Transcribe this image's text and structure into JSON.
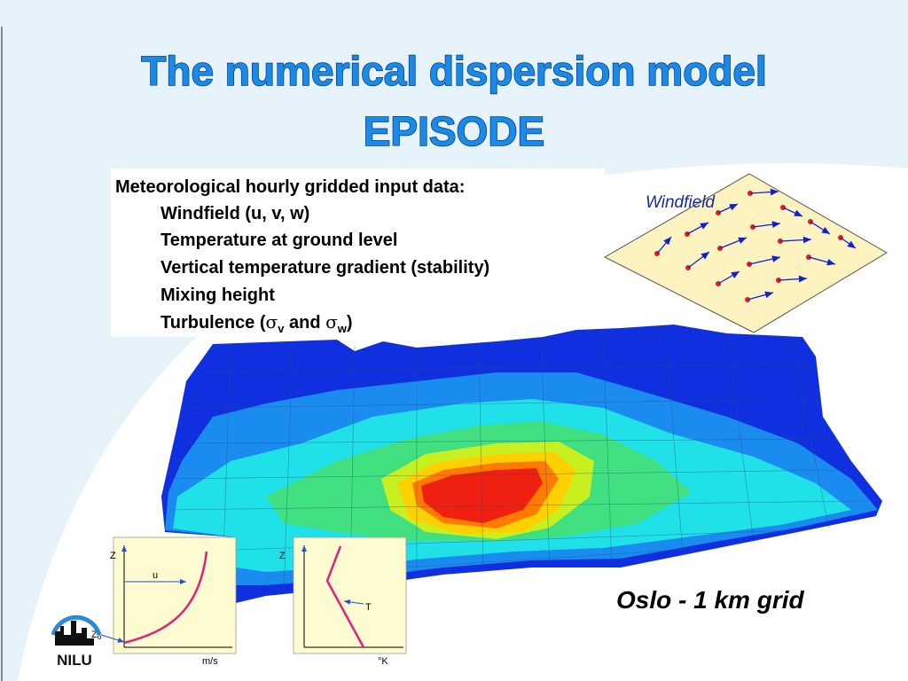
{
  "header": {
    "title_line1": "The numerical dispersion model",
    "title_line2": "EPISODE"
  },
  "inputs": {
    "heading": "Meteorological hourly gridded input data:",
    "items": [
      "Windfield (u, v, w)",
      "Temperature at ground level",
      "Vertical temperature gradient (stability)",
      "Mixing height"
    ],
    "turbulence": {
      "prefix": "Turbulence (",
      "sigma": "σ",
      "sub_v": "v",
      "and": " and ",
      "sub_w": "w",
      "suffix": ")"
    }
  },
  "windfield": {
    "label": "Windfield"
  },
  "wind_profile": {
    "z_axis": "Z",
    "curve": "u",
    "z0": {
      "base": "Z",
      "sub": "o"
    },
    "x_axis": "m/s"
  },
  "temp_profile": {
    "z_axis": "Z",
    "curve": "T",
    "x_axis": "°K"
  },
  "caption": "Oslo - 1 km grid",
  "logo": {
    "text": "NILU"
  }
}
